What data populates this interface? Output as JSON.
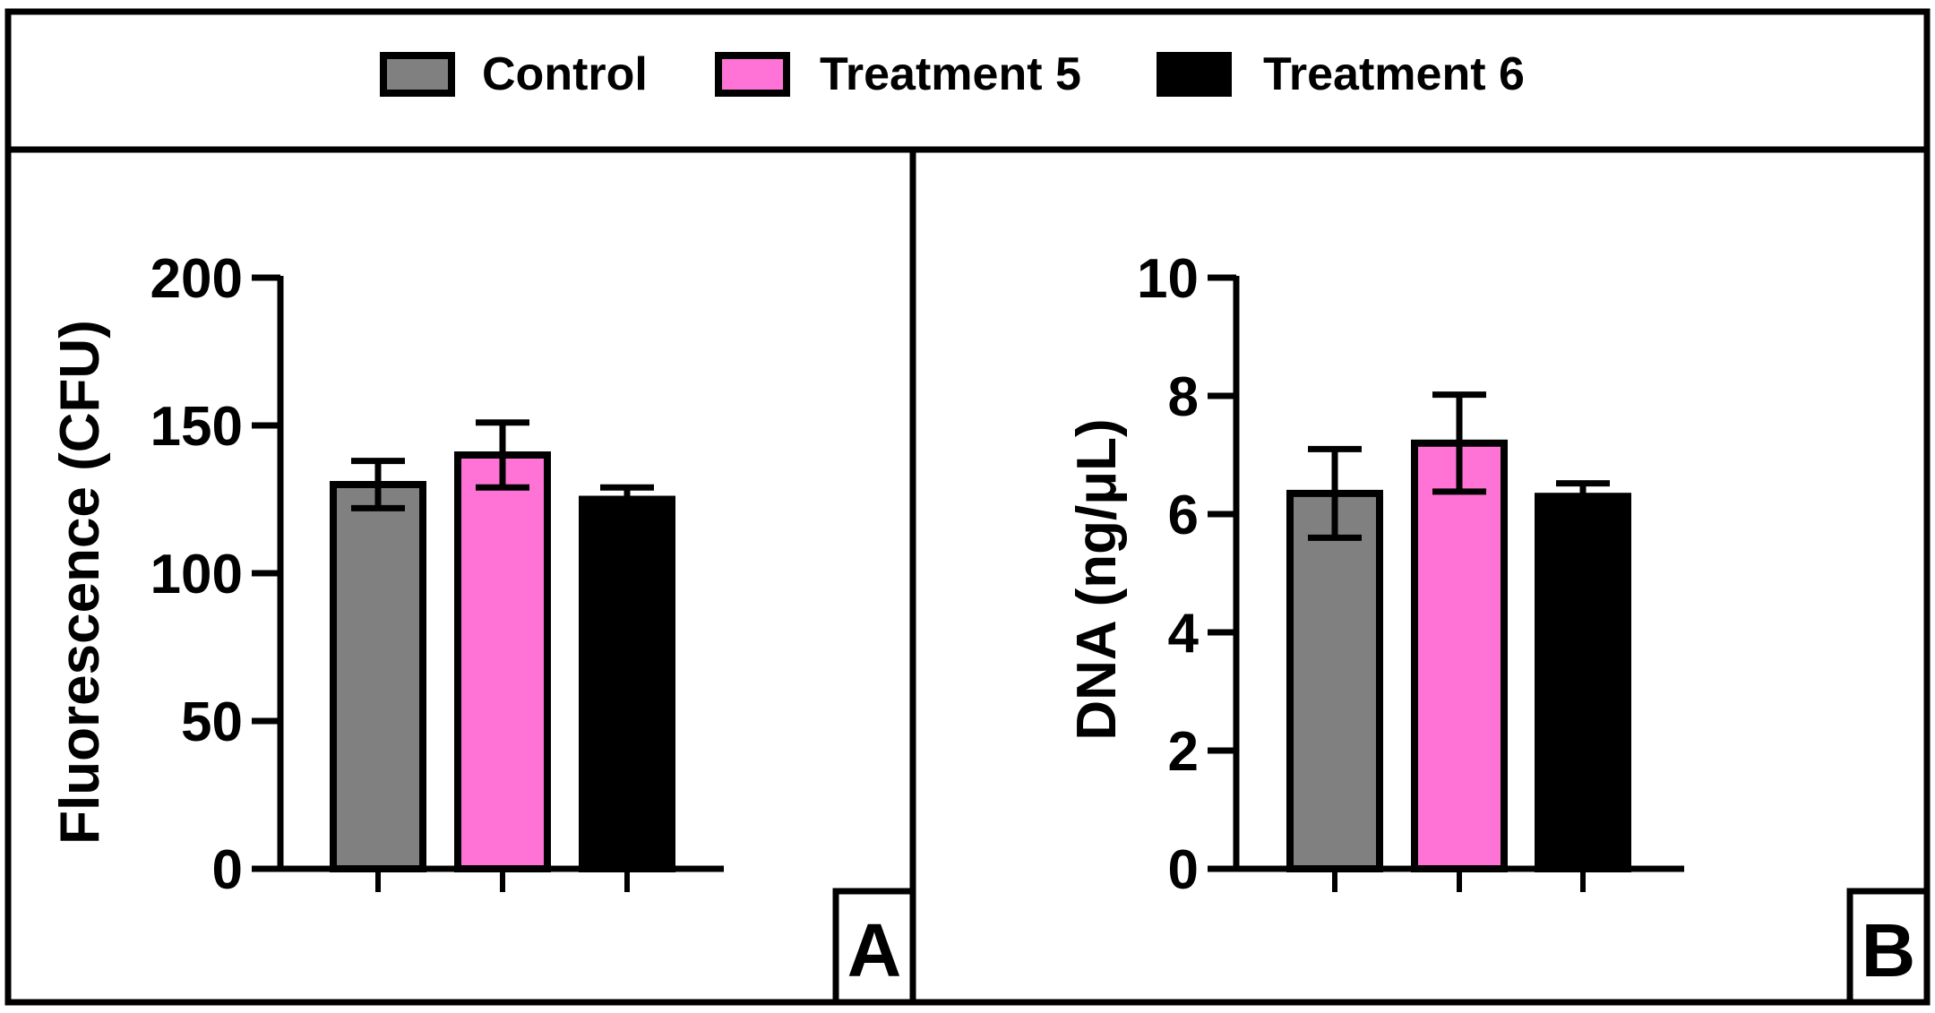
{
  "legend": [
    {
      "label": "Control",
      "color": "#808080"
    },
    {
      "label": "Treatment 5",
      "color": "#FF73D6"
    },
    {
      "label": "Treatment 6",
      "color": "#000000"
    }
  ],
  "chart_data": [
    {
      "type": "bar",
      "panel": "A",
      "ylabel": "Fluorescence  (CFU)",
      "xlabel": "",
      "ylim": [
        0,
        200
      ],
      "yticks": [
        0,
        50,
        100,
        150,
        200
      ],
      "categories": [
        "Control",
        "Treatment 5",
        "Treatment 6"
      ],
      "values": [
        130,
        140,
        125
      ],
      "errors": [
        8,
        11,
        4
      ],
      "colors": [
        "#808080",
        "#FF73D6",
        "#000000"
      ]
    },
    {
      "type": "bar",
      "panel": "B",
      "ylabel": "DNA (ng/μL)",
      "xlabel": "",
      "ylim": [
        0,
        10
      ],
      "yticks": [
        0,
        2,
        4,
        6,
        8,
        10
      ],
      "categories": [
        "Control",
        "Treatment 5",
        "Treatment 6"
      ],
      "values": [
        6.35,
        7.2,
        6.3
      ],
      "errors": [
        0.75,
        0.82,
        0.22
      ],
      "colors": [
        "#808080",
        "#FF73D6",
        "#000000"
      ]
    }
  ]
}
